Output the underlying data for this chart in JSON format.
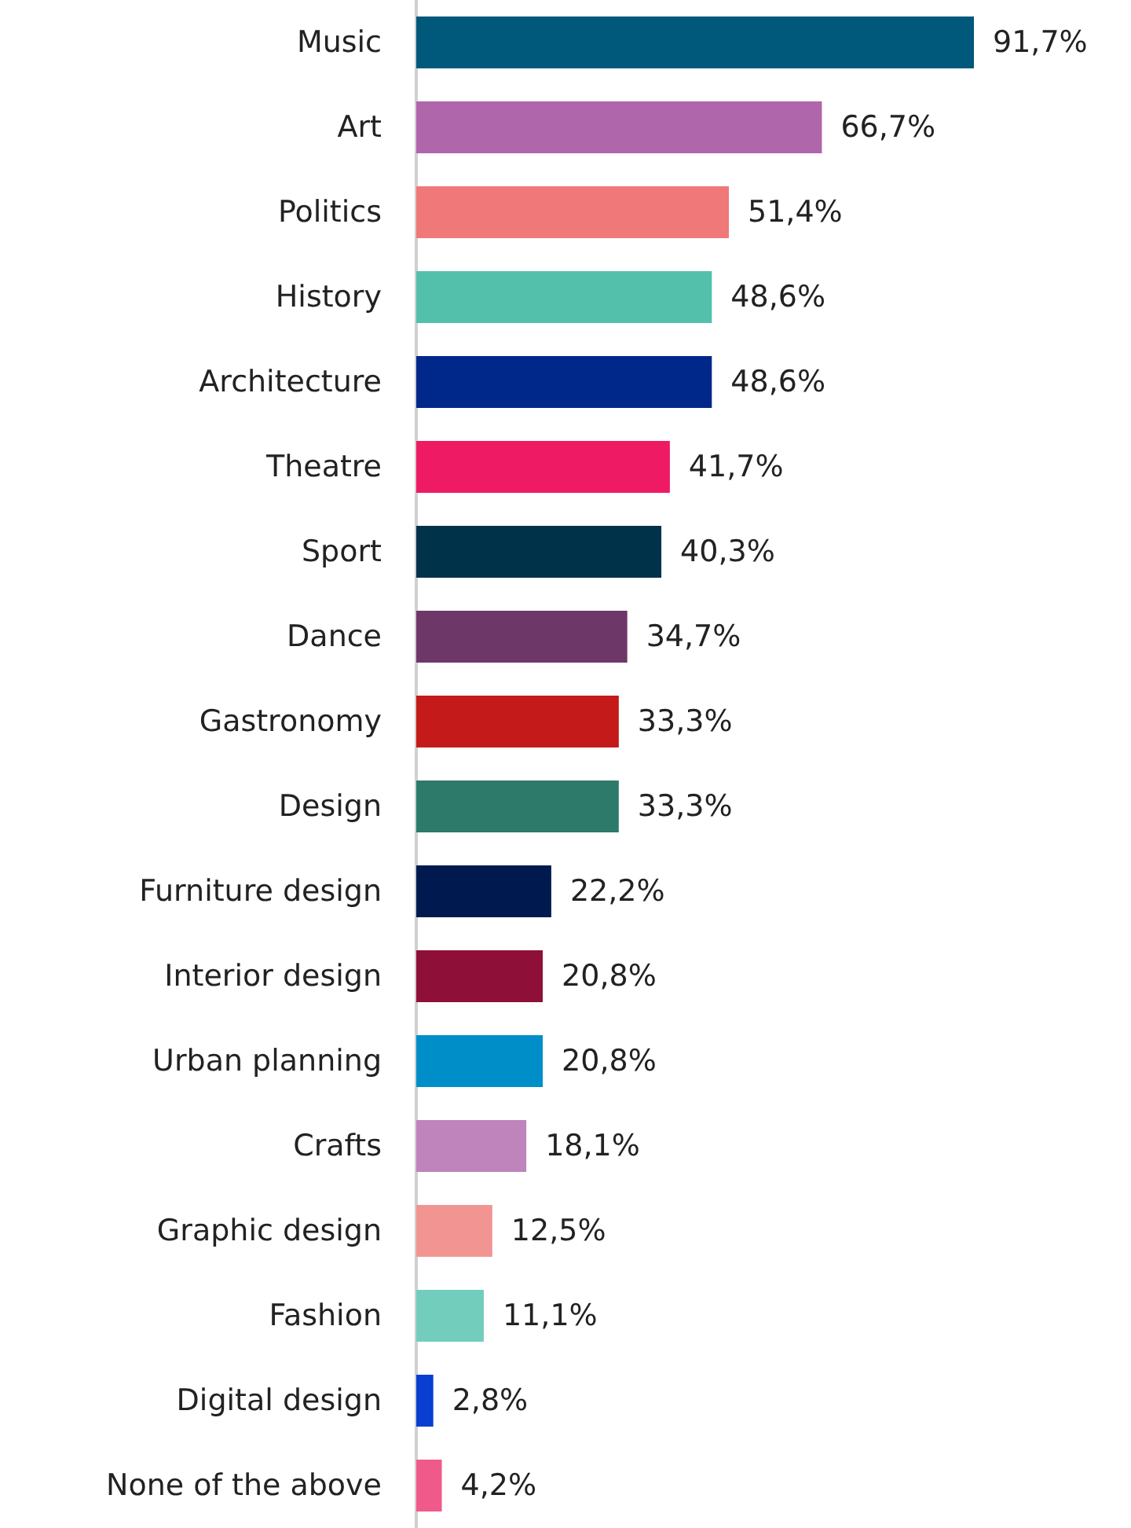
{
  "chart_data": {
    "type": "bar",
    "orientation": "horizontal",
    "categories": [
      "Music",
      "Art",
      "Politics",
      "History",
      "Architecture",
      "Theatre",
      "Sport",
      "Dance",
      "Gastronomy",
      "Design",
      "Furniture design",
      "Interior design",
      "Urban planning",
      "Crafts",
      "Graphic design",
      "Fashion",
      "Digital design",
      "None of the above"
    ],
    "values": [
      91.7,
      66.7,
      51.4,
      48.6,
      48.6,
      41.7,
      40.3,
      34.7,
      33.3,
      33.3,
      22.2,
      20.8,
      20.8,
      18.1,
      12.5,
      11.1,
      2.8,
      4.2
    ],
    "value_labels": [
      "91,7%",
      "66,7%",
      "51,4%",
      "48,6%",
      "48,6%",
      "41,7%",
      "40,3%",
      "34,7%",
      "33,3%",
      "33,3%",
      "22,2%",
      "20,8%",
      "20,8%",
      "18,1%",
      "12,5%",
      "11,1%",
      "2,8%",
      "4,2%"
    ],
    "colors": [
      "#00587a",
      "#b066ab",
      "#f07878",
      "#52c0ab",
      "#00288a",
      "#ee1a64",
      "#00324a",
      "#6d3868",
      "#c41a1a",
      "#2d7a6a",
      "#001a50",
      "#8e1038",
      "#008ec8",
      "#c084bc",
      "#f29592",
      "#72cdbc",
      "#0a3ed0",
      "#f05a8a"
    ],
    "tick_labels": "y"
  }
}
